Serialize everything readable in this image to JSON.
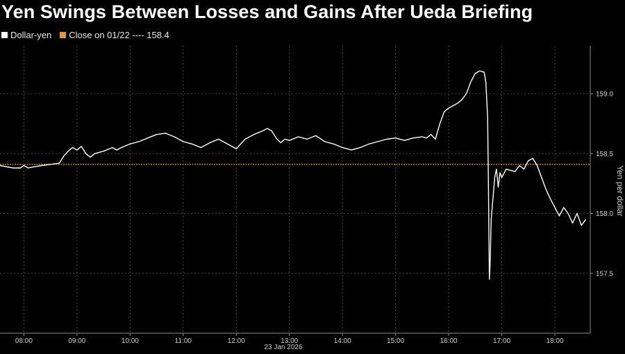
{
  "chart_data": {
    "type": "line",
    "title": "Yen Swings Between Losses and Gains After Ueda Briefing",
    "legend": [
      {
        "name": "Dollar-yen",
        "color": "#ffffff"
      },
      {
        "name": "Close on 01/22 ---- 158.4",
        "color": "#e8952f"
      }
    ],
    "ylabel": "Yen per dollar",
    "xlabel": "23 Jan 2026",
    "x_ticks": [
      "08:00",
      "09:00",
      "10:00",
      "11:00",
      "12:00",
      "13:00",
      "14:00",
      "15:00",
      "16:00",
      "17:00",
      "18:00"
    ],
    "y_ticks": [
      "157.5",
      "158.0",
      "158.5",
      "159.0"
    ],
    "ylim": [
      157.0,
      159.4
    ],
    "xlim": [
      "07:33",
      "18:40"
    ],
    "reference_line": {
      "value": 158.41,
      "color": "#e8952f"
    },
    "series": [
      {
        "name": "Dollar-yen",
        "color": "#ffffff",
        "x": [
          "07:33",
          "07:40",
          "07:48",
          "07:56",
          "08:00",
          "08:05",
          "08:12",
          "08:20",
          "08:30",
          "08:40",
          "08:45",
          "08:50",
          "08:55",
          "09:00",
          "09:05",
          "09:10",
          "09:15",
          "09:20",
          "09:30",
          "09:40",
          "09:45",
          "09:50",
          "10:00",
          "10:10",
          "10:20",
          "10:30",
          "10:40",
          "10:50",
          "11:00",
          "11:10",
          "11:20",
          "11:30",
          "11:40",
          "11:50",
          "12:00",
          "12:05",
          "12:10",
          "12:20",
          "12:30",
          "12:35",
          "12:40",
          "12:45",
          "12:50",
          "12:55",
          "13:00",
          "13:10",
          "13:20",
          "13:30",
          "13:40",
          "13:50",
          "14:00",
          "14:10",
          "14:20",
          "14:30",
          "14:40",
          "14:50",
          "15:00",
          "15:10",
          "15:20",
          "15:30",
          "15:35",
          "15:40",
          "15:45",
          "15:50",
          "15:55",
          "16:00",
          "16:05",
          "16:10",
          "16:15",
          "16:20",
          "16:25",
          "16:30",
          "16:35",
          "16:40",
          "16:42",
          "16:44",
          "16:45",
          "16:46",
          "16:47",
          "16:48",
          "16:50",
          "16:52",
          "16:54",
          "16:56",
          "16:58",
          "17:00",
          "17:05",
          "17:10",
          "17:15",
          "17:20",
          "17:25",
          "17:30",
          "17:35",
          "17:40",
          "17:45",
          "17:50",
          "17:55",
          "18:00",
          "18:05",
          "18:10",
          "18:15",
          "18:20",
          "18:25",
          "18:30",
          "18:35"
        ],
        "values": [
          158.4,
          158.39,
          158.38,
          158.38,
          158.4,
          158.38,
          158.39,
          158.4,
          158.41,
          158.42,
          158.48,
          158.52,
          158.55,
          158.53,
          158.56,
          158.5,
          158.47,
          158.5,
          158.52,
          158.55,
          158.53,
          158.55,
          158.58,
          158.6,
          158.63,
          158.66,
          158.67,
          158.64,
          158.6,
          158.58,
          158.55,
          158.59,
          158.62,
          158.58,
          158.54,
          158.58,
          158.62,
          158.66,
          158.69,
          158.71,
          158.69,
          158.63,
          158.59,
          158.62,
          158.61,
          158.64,
          158.62,
          158.65,
          158.6,
          158.58,
          158.55,
          158.53,
          158.55,
          158.58,
          158.6,
          158.62,
          158.63,
          158.61,
          158.63,
          158.64,
          158.63,
          158.66,
          158.62,
          158.75,
          158.85,
          158.88,
          158.9,
          158.92,
          158.95,
          159.0,
          159.1,
          159.17,
          159.19,
          159.18,
          159.1,
          158.8,
          158.2,
          157.45,
          157.62,
          157.95,
          158.12,
          158.3,
          158.37,
          158.22,
          158.34,
          158.3,
          158.37,
          158.36,
          158.35,
          158.4,
          158.37,
          158.44,
          158.46,
          158.4,
          158.3,
          158.2,
          158.12,
          158.05,
          157.98,
          158.05,
          158.0,
          157.92,
          158.0,
          157.9,
          157.95
        ]
      }
    ],
    "grid": true,
    "legend_position": "top-left"
  }
}
